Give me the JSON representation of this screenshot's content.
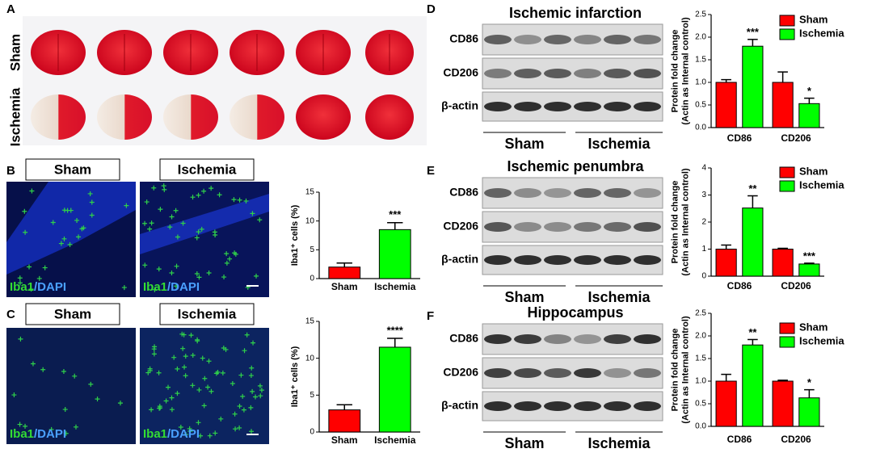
{
  "panel_labels": [
    "A",
    "B",
    "C",
    "D",
    "E",
    "F"
  ],
  "panel_a": {
    "rows": [
      "Sham",
      "Ischemia"
    ]
  },
  "micro": {
    "headers": [
      "Sham",
      "Ischemia"
    ],
    "stain_green": "Iba1",
    "stain_blue": "/DAPI"
  },
  "blots": [
    {
      "title": "Ischemic infarction",
      "rows": [
        "CD86",
        "CD206",
        "β-actin"
      ],
      "groups": [
        "Sham",
        "Ischemia"
      ]
    },
    {
      "title": "Ischemic penumbra",
      "rows": [
        "CD86",
        "CD206",
        "β-actin"
      ],
      "groups": [
        "Sham",
        "Ischemia"
      ]
    },
    {
      "title": "Hippocampus",
      "rows": [
        "CD86",
        "CD206",
        "β-actin"
      ],
      "groups": [
        "Sham",
        "Ischemia"
      ]
    }
  ],
  "chart_data": [
    {
      "type": "bar",
      "ylabel": [
        "Iba1⁺ cells (%)"
      ],
      "categories": [
        "Sham",
        "Ischemia"
      ],
      "values": [
        2,
        8.5
      ],
      "errors": [
        0.7,
        1.2
      ],
      "colors": [
        "#ff0000",
        "#00ff00"
      ],
      "ylim": [
        0,
        15
      ],
      "yticks": [
        0,
        5,
        10,
        15
      ],
      "annotation": "***"
    },
    {
      "type": "bar",
      "ylabel": [
        "Iba1⁺ cells (%)"
      ],
      "categories": [
        "Sham",
        "Ischemia"
      ],
      "values": [
        3,
        11.5
      ],
      "errors": [
        0.7,
        1.2
      ],
      "colors": [
        "#ff0000",
        "#00ff00"
      ],
      "ylim": [
        0,
        15
      ],
      "yticks": [
        0,
        5,
        10,
        15
      ],
      "annotation": "****"
    },
    {
      "type": "grouped_bar",
      "ylabel": [
        "Protein fold change",
        "(Actin as Internal control)"
      ],
      "categories": [
        "CD86",
        "CD206"
      ],
      "series": [
        {
          "name": "Sham",
          "color": "#ff0000",
          "values": [
            1,
            1
          ],
          "errors": [
            0.06,
            0.23
          ]
        },
        {
          "name": "Ischemia",
          "color": "#00ff00",
          "values": [
            1.8,
            0.53
          ],
          "errors": [
            0.15,
            0.12
          ]
        }
      ],
      "ylim": [
        0,
        2.5
      ],
      "yticks": [
        {
          "value": 0,
          "label": "0.0"
        },
        {
          "value": 0.5,
          "label": "0.5"
        },
        {
          "value": 1,
          "label": "1.0"
        },
        {
          "value": 1.5,
          "label": "1.5"
        },
        {
          "value": 2,
          "label": "2.0"
        },
        {
          "value": 2.5,
          "label": "2.5"
        }
      ],
      "annotations": [
        "***",
        "*"
      ]
    },
    {
      "type": "grouped_bar",
      "ylabel": [
        "Protein fold change",
        "(Actin as Internal control)"
      ],
      "categories": [
        "CD86",
        "CD206"
      ],
      "series": [
        {
          "name": "Sham",
          "color": "#ff0000",
          "values": [
            1,
            1
          ],
          "errors": [
            0.15,
            0.03
          ]
        },
        {
          "name": "Ischemia",
          "color": "#00ff00",
          "values": [
            2.52,
            0.45
          ],
          "errors": [
            0.45,
            0.03
          ]
        }
      ],
      "ylim": [
        0,
        4
      ],
      "yticks": [
        0,
        1,
        2,
        3,
        4
      ],
      "annotations": [
        "**",
        "***"
      ]
    },
    {
      "type": "grouped_bar",
      "ylabel": [
        "Protein fold change",
        "(Actin as Internal control)"
      ],
      "categories": [
        "CD86",
        "CD206"
      ],
      "series": [
        {
          "name": "Sham",
          "color": "#ff0000",
          "values": [
            1,
            1
          ],
          "errors": [
            0.15,
            0.02
          ]
        },
        {
          "name": "Ischemia",
          "color": "#00ff00",
          "values": [
            1.8,
            0.63
          ],
          "errors": [
            0.12,
            0.18
          ]
        }
      ],
      "ylim": [
        0,
        2.5
      ],
      "yticks": [
        {
          "value": 0,
          "label": "0.0"
        },
        {
          "value": 0.5,
          "label": "0.5"
        },
        {
          "value": 1,
          "label": "1.0"
        },
        {
          "value": 1.5,
          "label": "1.5"
        },
        {
          "value": 2,
          "label": "2.0"
        },
        {
          "value": 2.5,
          "label": "2.5"
        }
      ],
      "annotations": [
        "**",
        "*"
      ]
    }
  ]
}
